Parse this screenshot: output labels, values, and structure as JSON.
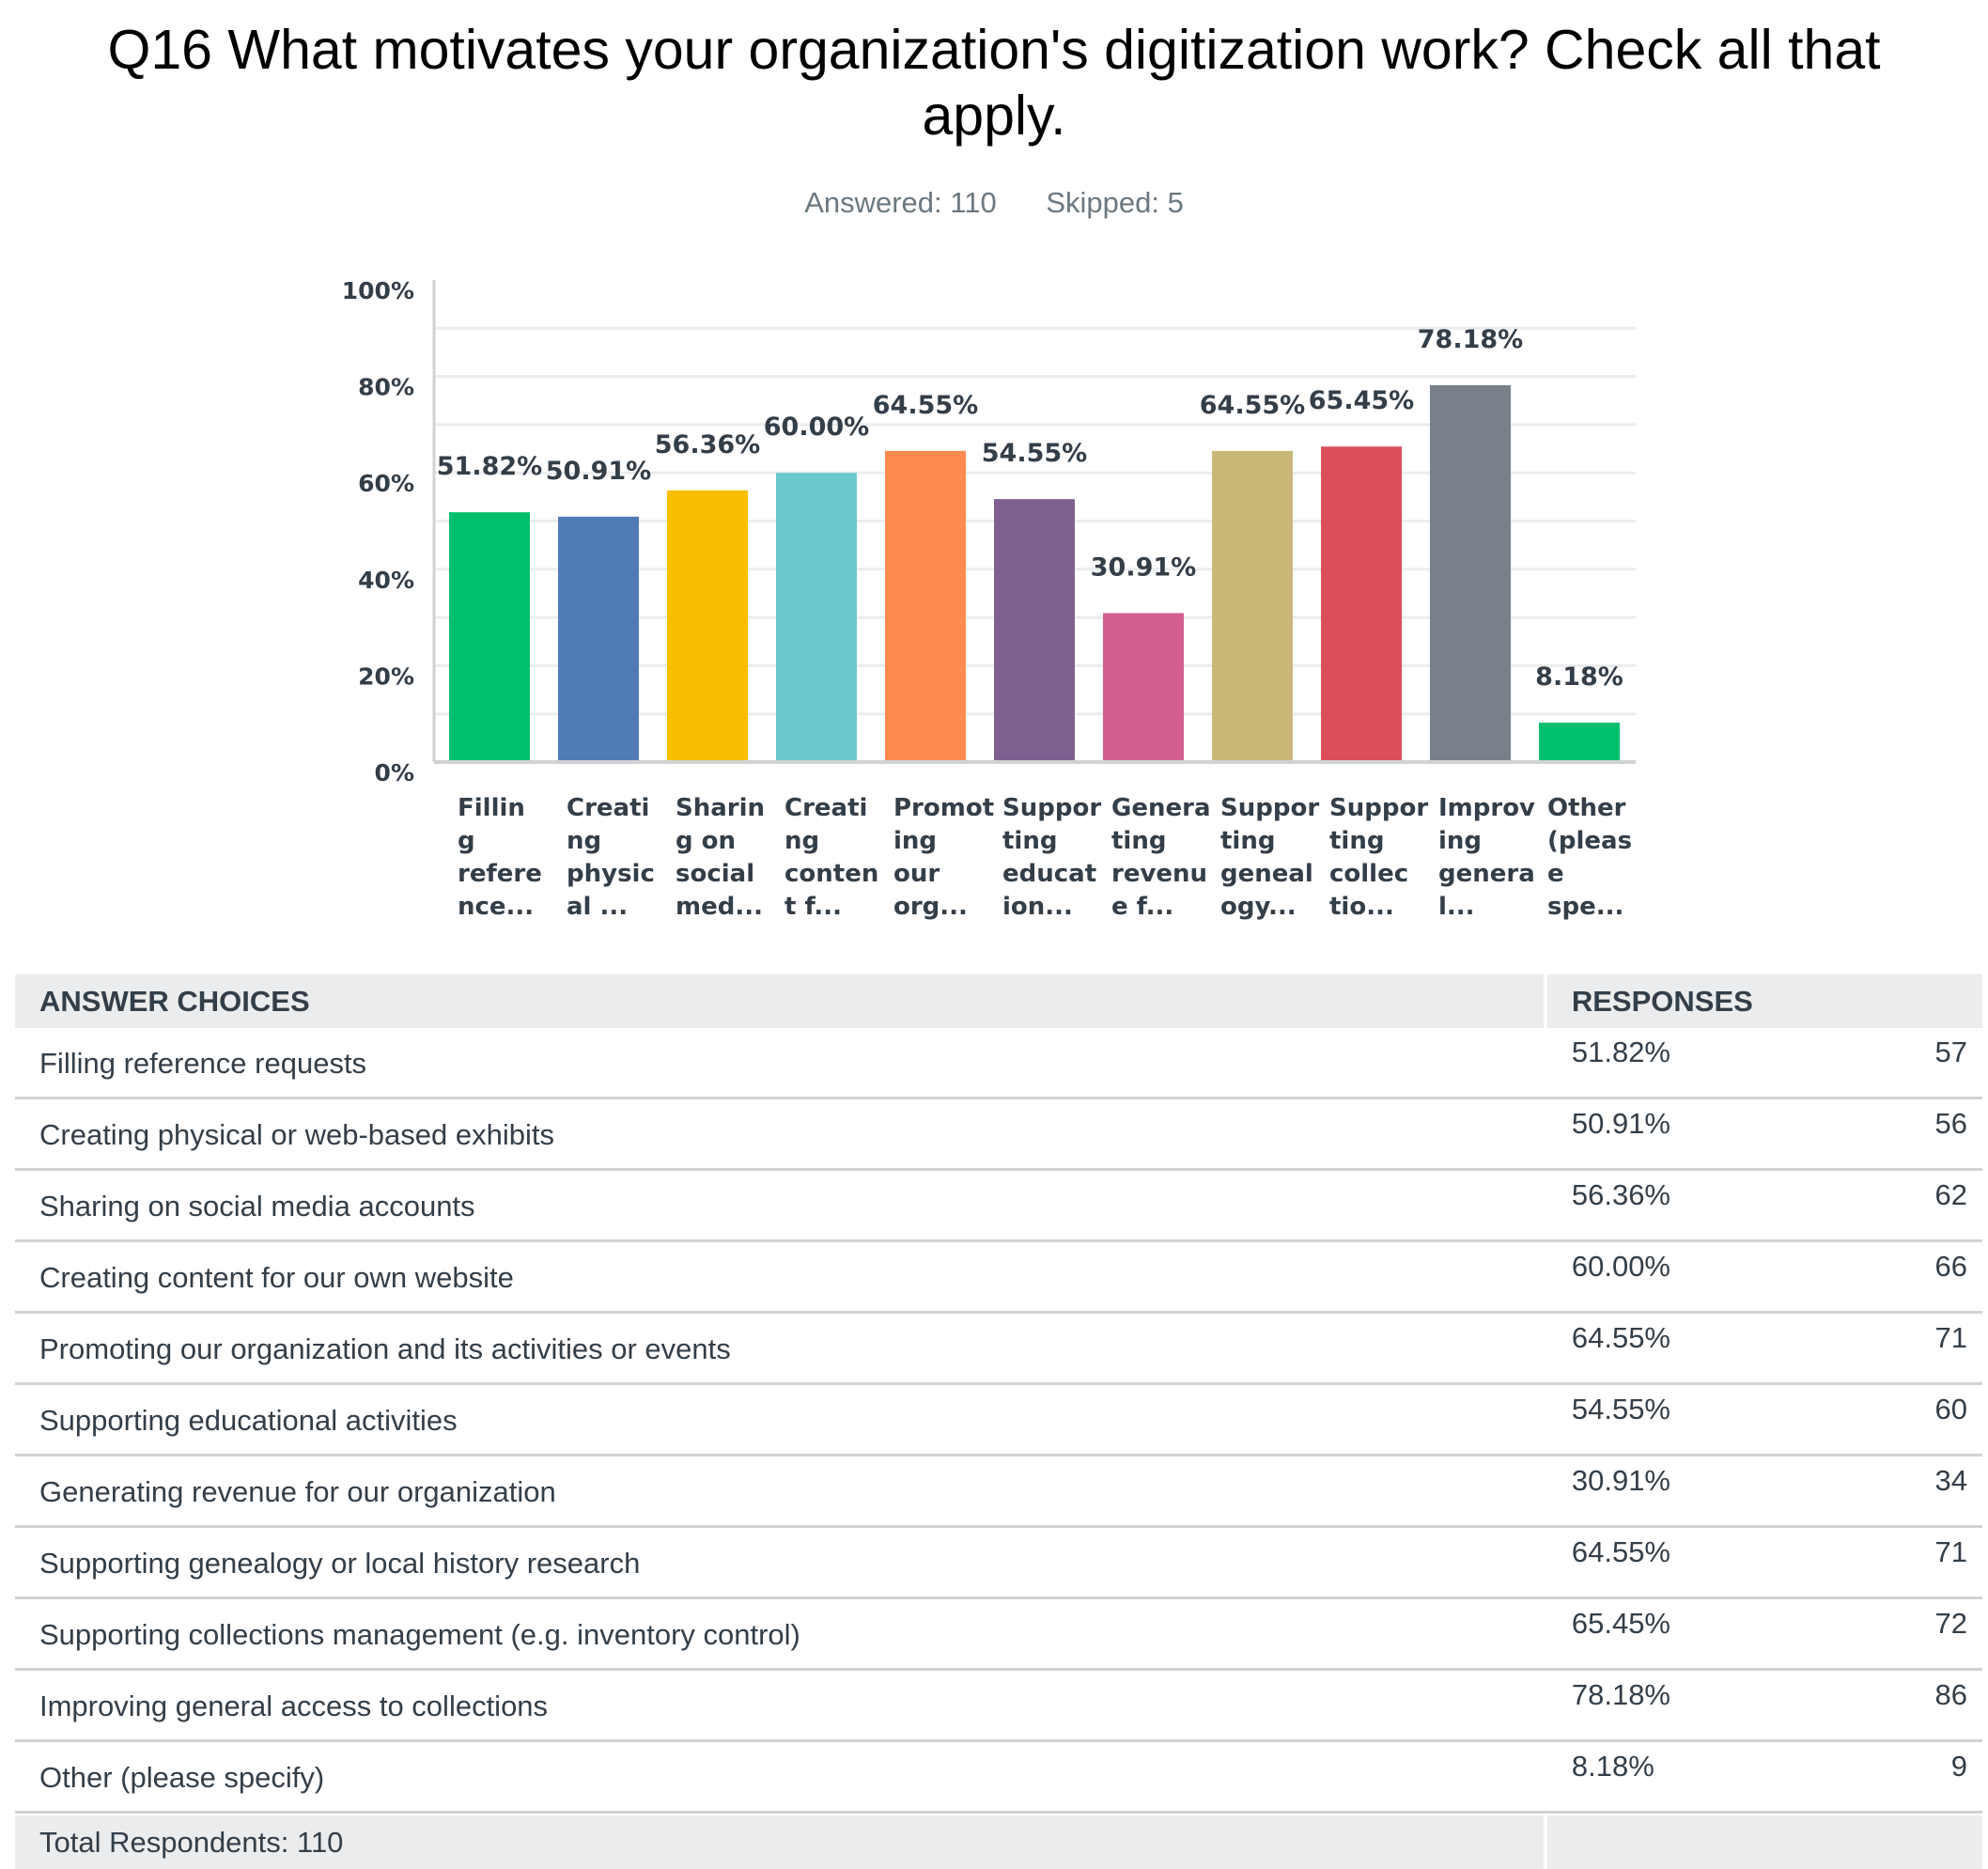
{
  "title": "Q16 What motivates your organization's digitization work? Check all that apply.",
  "answered": "Answered: 110",
  "skipped": "Skipped: 5",
  "chart_data": {
    "type": "bar",
    "categories": [
      "Filling reference...",
      "Creating physical ...",
      "Sharing on social med...",
      "Creating content f...",
      "Promoting our org...",
      "Supporting education...",
      "Generating revenue f...",
      "Supporting genealogy...",
      "Supporting collectio...",
      "Improving general l...",
      "Other (please spe..."
    ],
    "category_lines": [
      [
        "Fillin",
        "g",
        "refere",
        "nce..."
      ],
      [
        "Creati",
        "ng",
        "physic",
        "al ..."
      ],
      [
        "Sharin",
        "g on",
        "social",
        "med..."
      ],
      [
        "Creati",
        "ng",
        "conten",
        "t f..."
      ],
      [
        "Promot",
        "ing",
        "our",
        "org..."
      ],
      [
        "Suppor",
        "ting",
        "educat",
        "ion..."
      ],
      [
        "Genera",
        "ting",
        "revenu",
        "e f..."
      ],
      [
        "Suppor",
        "ting",
        "geneal",
        "ogy..."
      ],
      [
        "Suppor",
        "ting",
        "collec",
        "tio..."
      ],
      [
        "Improv",
        "ing",
        "genera",
        "l..."
      ],
      [
        "Other",
        "(pleas",
        "e",
        "spe..."
      ]
    ],
    "values": [
      51.82,
      50.91,
      56.36,
      60.0,
      64.55,
      54.55,
      30.91,
      64.55,
      65.45,
      78.18,
      8.18
    ],
    "data_labels": [
      "51.82%",
      "50.91%",
      "56.36%",
      "60.00%",
      "64.55%",
      "54.55%",
      "30.91%",
      "64.55%",
      "65.45%",
      "78.18%",
      "8.18%"
    ],
    "colors": [
      "#00bf6f",
      "#507cb6",
      "#f9be00",
      "#6bc8cd",
      "#ff8b4f",
      "#7f5f90",
      "#d25f90",
      "#c9b778",
      "#dc4e5b",
      "#78808a",
      "#00bf6f"
    ],
    "ylim": [
      0,
      100
    ],
    "yticks": [
      "0%",
      "20%",
      "40%",
      "60%",
      "80%",
      "100%"
    ],
    "ytick_values": [
      0,
      20,
      40,
      60,
      80,
      100
    ],
    "grid": true
  },
  "table": {
    "headers": {
      "choices": "ANSWER CHOICES",
      "responses": "RESPONSES"
    },
    "rows": [
      {
        "choice": "Filling reference requests",
        "pct": "51.82%",
        "count": "57"
      },
      {
        "choice": "Creating physical or web-based exhibits",
        "pct": "50.91%",
        "count": "56"
      },
      {
        "choice": "Sharing on social media accounts",
        "pct": "56.36%",
        "count": "62"
      },
      {
        "choice": "Creating content for our own website",
        "pct": "60.00%",
        "count": "66"
      },
      {
        "choice": "Promoting our organization and its activities or events",
        "pct": "64.55%",
        "count": "71"
      },
      {
        "choice": "Supporting educational activities",
        "pct": "54.55%",
        "count": "60"
      },
      {
        "choice": "Generating revenue for our organization",
        "pct": "30.91%",
        "count": "34"
      },
      {
        "choice": "Supporting genealogy or local history research",
        "pct": "64.55%",
        "count": "71"
      },
      {
        "choice": "Supporting collections management (e.g. inventory control)",
        "pct": "65.45%",
        "count": "72"
      },
      {
        "choice": "Improving general access to collections",
        "pct": "78.18%",
        "count": "86"
      },
      {
        "choice": "Other (please specify)",
        "pct": "8.18%",
        "count": "9"
      }
    ],
    "total": "Total Respondents: 110"
  }
}
